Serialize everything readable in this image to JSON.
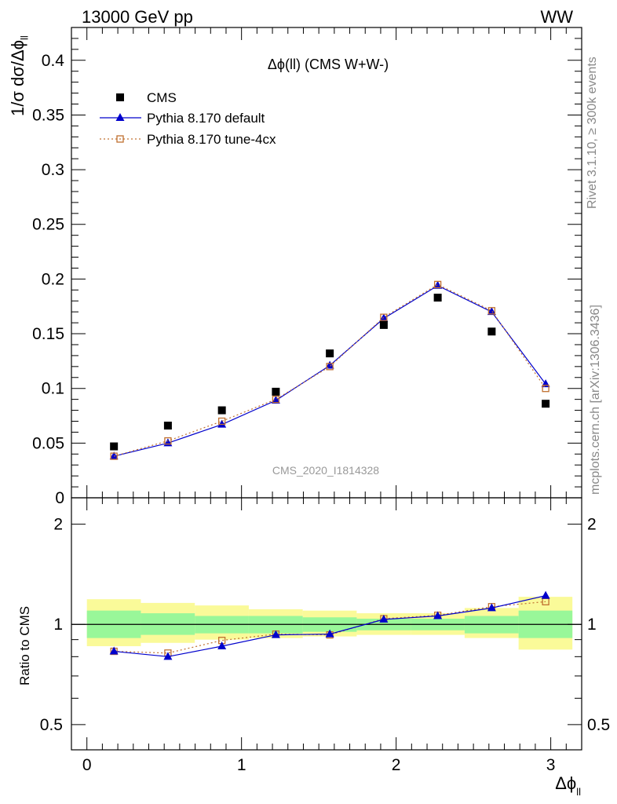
{
  "header": {
    "left": "13000 GeV pp",
    "right": "WW"
  },
  "sidebar": {
    "rivet": "Rivet 3.1.10, ≥ 300k events",
    "mcplots": "mcplots.cern.ch [arXiv:1306.3436]"
  },
  "colors": {
    "cms": "#000000",
    "default": "#0000cc",
    "tune": "#c07030",
    "band_inner": "#99f799",
    "band_outer": "#fafa99",
    "ref_line": "#000000",
    "watermark": "#999999"
  },
  "chart_data": {
    "type": "line",
    "title": "Δϕ(ll) (CMS W+W-)",
    "watermark": "CMS_2020_I1814328",
    "xlabel": "Δϕ_ll",
    "xlabel_main": "Δϕ",
    "xlabel_sub": "ll",
    "ylabel_main": "1/σ dσ/Δϕ",
    "ylabel_sub": "ll",
    "ylabel_ratio": "Ratio to CMS",
    "xlim": [
      -0.1,
      3.2
    ],
    "ylim": [
      0,
      0.43
    ],
    "ratio_ylim": [
      0.42,
      2.4
    ],
    "ratio_log": true,
    "x_ticks": [
      0,
      1,
      2,
      3
    ],
    "x_tick_labels": [
      "0",
      "1",
      "2",
      "3"
    ],
    "y_ticks": [
      0,
      0.05,
      0.1,
      0.15,
      0.2,
      0.25,
      0.3,
      0.35,
      0.4
    ],
    "y_tick_labels": [
      "0",
      "0.05",
      "0.1",
      "0.15",
      "0.2",
      "0.25",
      "0.3",
      "0.35",
      "0.4"
    ],
    "ratio_ticks": [
      0.5,
      1,
      2
    ],
    "ratio_tick_labels": [
      "0.5",
      "1",
      "2"
    ],
    "bin_edges": [
      0,
      0.349,
      0.698,
      1.047,
      1.396,
      1.745,
      2.094,
      2.443,
      2.792,
      3.14
    ],
    "x": [
      0.175,
      0.524,
      0.873,
      1.222,
      1.571,
      1.92,
      2.269,
      2.618,
      2.967
    ],
    "legend_position": "top-left",
    "series": [
      {
        "name": "CMS",
        "marker": "square",
        "values": [
          0.047,
          0.066,
          0.08,
          0.097,
          0.132,
          0.158,
          0.183,
          0.152,
          0.086
        ]
      },
      {
        "name": "Pythia 8.170 default",
        "marker": "triangle",
        "line": "solid",
        "values": [
          0.038,
          0.05,
          0.067,
          0.089,
          0.121,
          0.164,
          0.194,
          0.17,
          0.104
        ]
      },
      {
        "name": "Pythia 8.170 tune-4cx",
        "marker": "open-square",
        "line": "dotted",
        "values": [
          0.038,
          0.052,
          0.07,
          0.09,
          0.12,
          0.165,
          0.195,
          0.171,
          0.1
        ]
      }
    ],
    "ratio_series": [
      {
        "name": "Pythia 8.170 default",
        "values": [
          0.83,
          0.8,
          0.86,
          0.93,
          0.935,
          1.035,
          1.06,
          1.12,
          1.22
        ]
      },
      {
        "name": "Pythia 8.170 tune-4cx",
        "values": [
          0.83,
          0.82,
          0.895,
          0.935,
          0.93,
          1.04,
          1.065,
          1.13,
          1.17
        ]
      }
    ],
    "ratio_band_inner": [
      {
        "lo": 0.91,
        "hi": 1.1
      },
      {
        "lo": 0.93,
        "hi": 1.08
      },
      {
        "lo": 0.94,
        "hi": 1.06
      },
      {
        "lo": 0.94,
        "hi": 1.06
      },
      {
        "lo": 0.95,
        "hi": 1.05
      },
      {
        "lo": 0.96,
        "hi": 1.04
      },
      {
        "lo": 0.96,
        "hi": 1.04
      },
      {
        "lo": 0.94,
        "hi": 1.06
      },
      {
        "lo": 0.91,
        "hi": 1.1
      }
    ],
    "ratio_band_outer": [
      {
        "lo": 0.86,
        "hi": 1.19
      },
      {
        "lo": 0.88,
        "hi": 1.16
      },
      {
        "lo": 0.9,
        "hi": 1.14
      },
      {
        "lo": 0.91,
        "hi": 1.11
      },
      {
        "lo": 0.92,
        "hi": 1.1
      },
      {
        "lo": 0.93,
        "hi": 1.08
      },
      {
        "lo": 0.93,
        "hi": 1.08
      },
      {
        "lo": 0.91,
        "hi": 1.12
      },
      {
        "lo": 0.84,
        "hi": 1.21
      }
    ]
  }
}
